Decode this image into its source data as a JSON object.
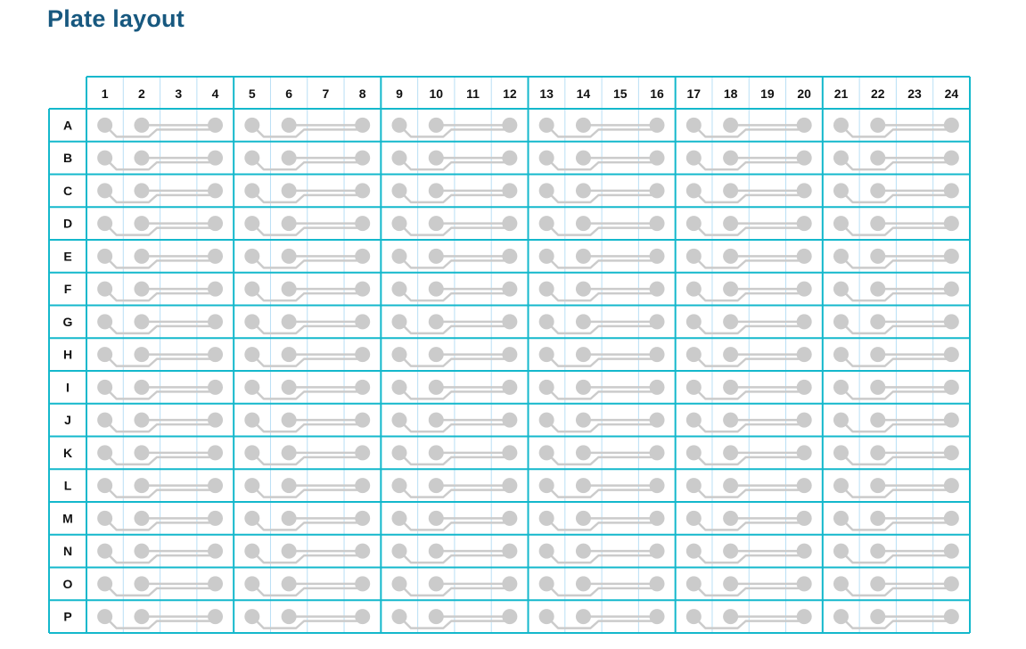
{
  "title": "Plate layout",
  "columns": [
    "1",
    "2",
    "3",
    "4",
    "5",
    "6",
    "7",
    "8",
    "9",
    "10",
    "11",
    "12",
    "13",
    "14",
    "15",
    "16",
    "17",
    "18",
    "19",
    "20",
    "21",
    "22",
    "23",
    "24"
  ],
  "rows": [
    "A",
    "B",
    "C",
    "D",
    "E",
    "F",
    "G",
    "H",
    "I",
    "J",
    "K",
    "L",
    "M",
    "N",
    "O",
    "P"
  ],
  "colors": {
    "grid_major": "#14b8cc",
    "grid_minor": "#b9dff5",
    "well": "#cbcbcb",
    "title": "#17587f"
  }
}
